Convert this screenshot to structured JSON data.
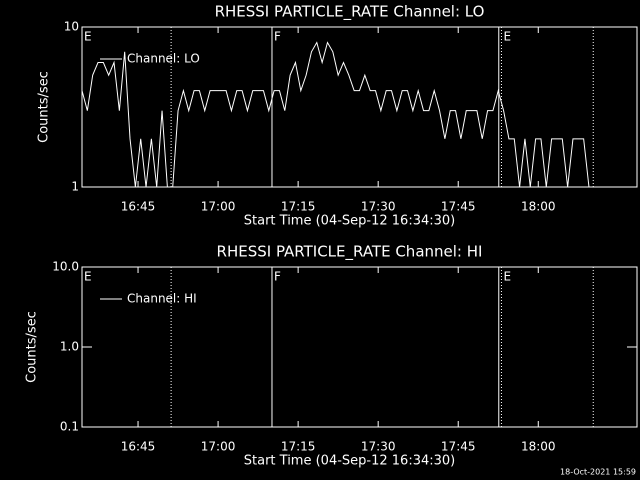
{
  "chart_data": [
    {
      "type": "line",
      "title": "RHESSI PARTICLE_RATE Channel: LO",
      "xlabel": "Start Time (04-Sep-12 16:34:30)",
      "ylabel": "Counts/sec",
      "log_y": true,
      "xlim": [
        994.5,
        1098.5
      ],
      "ylim": [
        1,
        10
      ],
      "yticks": [
        1,
        10
      ],
      "xticks": [
        {
          "value": 1005,
          "label": "16:45"
        },
        {
          "value": 1020,
          "label": "17:00"
        },
        {
          "value": 1035,
          "label": "17:15"
        },
        {
          "value": 1050,
          "label": "17:30"
        },
        {
          "value": 1065,
          "label": "17:45"
        },
        {
          "value": 1080,
          "label": "18:00"
        }
      ],
      "vlines": [
        {
          "x": 1011.2,
          "style": "dotted"
        },
        {
          "x": 1030.1,
          "style": "solid"
        },
        {
          "x": 1072.6,
          "style": "solid"
        },
        {
          "x": 1073.1,
          "style": "dotted"
        },
        {
          "x": 1090.3,
          "style": "dotted"
        }
      ],
      "annotations": [
        {
          "text": "E",
          "x": 994.5
        },
        {
          "text": "F",
          "x": 1030.1
        },
        {
          "text": "E",
          "x": 1073.1
        }
      ],
      "x": [
        994.5,
        995.5,
        996.5,
        997.5,
        998.5,
        999.5,
        1000.5,
        1001.5,
        1002.5,
        1003.5,
        1004.5,
        1005.5,
        1006.5,
        1007.5,
        1008.5,
        1009.5,
        1010.5,
        1011.5,
        1012.5,
        1013.5,
        1014.5,
        1015.5,
        1016.5,
        1017.5,
        1018.5,
        1019.5,
        1020.5,
        1021.5,
        1022.5,
        1023.5,
        1024.5,
        1025.5,
        1026.5,
        1027.5,
        1028.5,
        1029.5,
        1030.5,
        1031.5,
        1032.5,
        1033.5,
        1034.5,
        1035.5,
        1036.5,
        1037.5,
        1038.5,
        1039.5,
        1040.5,
        1041.5,
        1042.5,
        1043.5,
        1044.5,
        1045.5,
        1046.5,
        1047.5,
        1048.5,
        1049.5,
        1050.5,
        1051.5,
        1052.5,
        1053.5,
        1054.5,
        1055.5,
        1056.5,
        1057.5,
        1058.5,
        1059.5,
        1060.5,
        1061.5,
        1062.5,
        1063.5,
        1064.5,
        1065.5,
        1066.5,
        1067.5,
        1068.5,
        1069.5,
        1070.5,
        1071.5,
        1072.5,
        1073.5,
        1074.5,
        1075.5,
        1076.5,
        1077.5,
        1078.5,
        1079.5,
        1080.5,
        1081.5,
        1082.5,
        1083.5,
        1084.5,
        1085.5,
        1086.5,
        1087.5,
        1088.5,
        1089.5,
        1090.5
      ],
      "series": [
        {
          "name": "Channel: LO",
          "color": "#ffffff",
          "values": [
            4,
            3,
            5,
            6,
            6,
            5,
            6,
            3,
            7,
            2,
            1,
            2,
            1,
            2,
            1,
            3,
            1,
            1,
            3,
            4,
            3,
            4,
            4,
            3,
            4,
            4,
            4,
            4,
            3,
            4,
            4,
            3,
            4,
            4,
            4,
            3,
            4,
            4,
            3,
            5,
            6,
            4,
            5,
            7,
            8,
            6,
            8,
            7,
            5,
            6,
            5,
            4,
            4,
            5,
            4,
            4,
            3,
            4,
            4,
            3,
            4,
            4,
            3,
            4,
            3,
            3,
            4,
            3,
            2,
            3,
            3,
            2,
            3,
            3,
            3,
            2,
            3,
            3,
            4,
            3,
            2,
            2,
            1,
            2,
            1,
            2,
            2,
            1,
            2,
            2,
            2,
            1,
            2,
            2,
            2,
            1,
            1
          ]
        }
      ]
    },
    {
      "type": "line",
      "title": "RHESSI PARTICLE_RATE Channel: HI",
      "xlabel": "Start Time (04-Sep-12 16:34:30)",
      "ylabel": "Counts/sec",
      "log_y": true,
      "xlim": [
        994.5,
        1098.5
      ],
      "ylim": [
        0.1,
        10
      ],
      "yticks": [
        0.1,
        {
          "value": 1,
          "label": "1.0"
        },
        {
          "value": 10,
          "label": "10.0"
        }
      ],
      "xticks": [
        {
          "value": 1005,
          "label": "16:45"
        },
        {
          "value": 1020,
          "label": "17:00"
        },
        {
          "value": 1035,
          "label": "17:15"
        },
        {
          "value": 1050,
          "label": "17:30"
        },
        {
          "value": 1065,
          "label": "17:45"
        },
        {
          "value": 1080,
          "label": "18:00"
        }
      ],
      "vlines": [
        {
          "x": 1011.2,
          "style": "dotted"
        },
        {
          "x": 1030.1,
          "style": "solid"
        },
        {
          "x": 1072.6,
          "style": "solid"
        },
        {
          "x": 1073.1,
          "style": "dotted"
        },
        {
          "x": 1090.3,
          "style": "dotted"
        }
      ],
      "annotations": [
        {
          "text": "E",
          "x": 994.5
        },
        {
          "text": "F",
          "x": 1030.1
        },
        {
          "text": "E",
          "x": 1073.1
        }
      ],
      "series": [
        {
          "name": "Channel: HI",
          "color": "#ffffff"
        }
      ]
    }
  ],
  "footer": "18-Oct-2021 15:59"
}
